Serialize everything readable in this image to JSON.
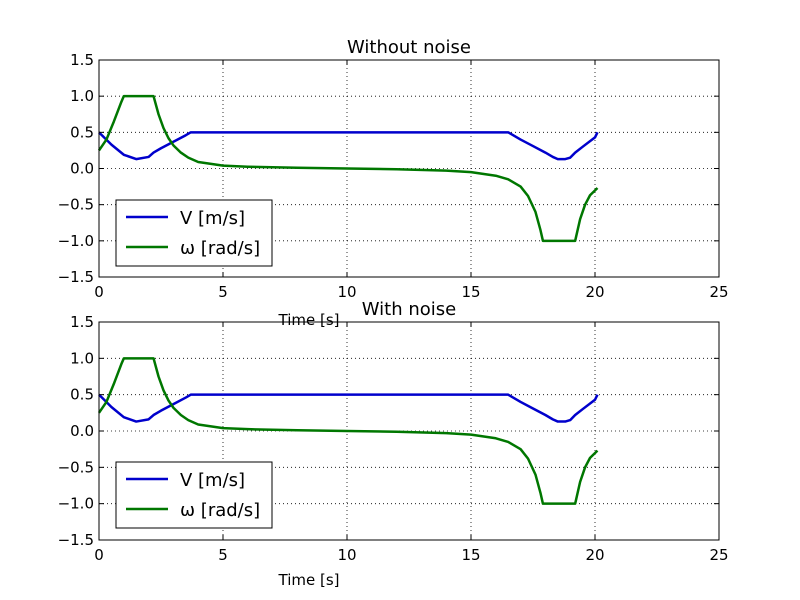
{
  "chart_data": [
    {
      "type": "line",
      "title": "Without noise",
      "xlabel": "Time [s]",
      "ylabel": "",
      "xlim": [
        0,
        25
      ],
      "ylim": [
        -1.5,
        1.5
      ],
      "xticks": [
        0,
        5,
        10,
        15,
        20,
        25
      ],
      "yticks": [
        -1.5,
        -1.0,
        -0.5,
        0.0,
        0.5,
        1.0,
        1.5
      ],
      "xtick_labels": [
        "0",
        "5",
        "10",
        "15",
        "20",
        "25"
      ],
      "ytick_labels": [
        "−1.5",
        "−1.0",
        "−0.5",
        "0.0",
        "0.5",
        "1.0",
        "1.5"
      ],
      "grid": true,
      "legend_position": "lower-left",
      "series": [
        {
          "name": "V [m/s]",
          "color": "#0000cc",
          "x": [
            0,
            0.5,
            1.0,
            1.5,
            2.0,
            2.2,
            2.5,
            3.0,
            3.5,
            3.7,
            4,
            6,
            8,
            10,
            12,
            14,
            16,
            16.5,
            17.0,
            17.5,
            18.0,
            18.3,
            18.5,
            18.8,
            19.0,
            19.2,
            19.5,
            20.0,
            20.1
          ],
          "values": [
            0.5,
            0.33,
            0.19,
            0.13,
            0.16,
            0.22,
            0.28,
            0.37,
            0.46,
            0.5,
            0.5,
            0.5,
            0.5,
            0.5,
            0.5,
            0.5,
            0.5,
            0.5,
            0.4,
            0.31,
            0.22,
            0.16,
            0.13,
            0.13,
            0.15,
            0.22,
            0.3,
            0.43,
            0.5
          ]
        },
        {
          "name": "ω [rad/s]",
          "color": "#007700",
          "x": [
            0,
            0.3,
            0.6,
            0.9,
            1.0,
            2.2,
            2.4,
            2.6,
            2.8,
            3.0,
            3.3,
            3.6,
            4.0,
            5,
            6,
            8,
            10,
            12,
            14,
            15,
            16,
            16.5,
            17.0,
            17.3,
            17.6,
            17.8,
            17.9,
            19.2,
            19.4,
            19.6,
            19.8,
            20.1
          ],
          "values": [
            0.25,
            0.4,
            0.65,
            0.92,
            1.0,
            1.0,
            0.75,
            0.56,
            0.42,
            0.32,
            0.22,
            0.15,
            0.09,
            0.04,
            0.025,
            0.01,
            0.0,
            -0.01,
            -0.03,
            -0.05,
            -0.1,
            -0.15,
            -0.25,
            -0.38,
            -0.6,
            -0.85,
            -1.0,
            -1.0,
            -0.7,
            -0.5,
            -0.37,
            -0.27
          ]
        }
      ]
    },
    {
      "type": "line",
      "title": "With noise",
      "xlabel": "Time [s]",
      "ylabel": "",
      "xlim": [
        0,
        25
      ],
      "ylim": [
        -1.5,
        1.5
      ],
      "xticks": [
        0,
        5,
        10,
        15,
        20,
        25
      ],
      "yticks": [
        -1.5,
        -1.0,
        -0.5,
        0.0,
        0.5,
        1.0,
        1.5
      ],
      "xtick_labels": [
        "0",
        "5",
        "10",
        "15",
        "20",
        "25"
      ],
      "ytick_labels": [
        "−1.5",
        "−1.0",
        "−0.5",
        "0.0",
        "0.5",
        "1.0",
        "1.5"
      ],
      "grid": true,
      "legend_position": "lower-left",
      "series": [
        {
          "name": "V [m/s]",
          "color": "#0000cc",
          "x": [
            0,
            0.5,
            1.0,
            1.5,
            2.0,
            2.2,
            2.5,
            3.0,
            3.5,
            3.7,
            4,
            6,
            8,
            10,
            12,
            14,
            16,
            16.5,
            17.0,
            17.5,
            18.0,
            18.3,
            18.5,
            18.8,
            19.0,
            19.2,
            19.5,
            20.0,
            20.1
          ],
          "values": [
            0.5,
            0.33,
            0.19,
            0.13,
            0.16,
            0.22,
            0.28,
            0.37,
            0.46,
            0.5,
            0.5,
            0.5,
            0.5,
            0.5,
            0.5,
            0.5,
            0.5,
            0.5,
            0.4,
            0.31,
            0.22,
            0.16,
            0.13,
            0.13,
            0.15,
            0.22,
            0.3,
            0.43,
            0.5
          ]
        },
        {
          "name": "ω [rad/s]",
          "color": "#007700",
          "x": [
            0,
            0.3,
            0.6,
            0.9,
            1.0,
            2.2,
            2.4,
            2.6,
            2.8,
            3.0,
            3.3,
            3.6,
            4.0,
            5,
            6,
            8,
            10,
            12,
            14,
            15,
            16,
            16.5,
            17.0,
            17.3,
            17.6,
            17.8,
            17.9,
            19.2,
            19.4,
            19.6,
            19.8,
            20.1
          ],
          "values": [
            0.25,
            0.4,
            0.65,
            0.92,
            1.0,
            1.0,
            0.75,
            0.56,
            0.42,
            0.32,
            0.22,
            0.15,
            0.09,
            0.04,
            0.025,
            0.01,
            0.0,
            -0.01,
            -0.03,
            -0.05,
            -0.1,
            -0.15,
            -0.25,
            -0.38,
            -0.6,
            -0.85,
            -1.0,
            -1.0,
            -0.7,
            -0.5,
            -0.37,
            -0.27
          ]
        }
      ]
    }
  ]
}
